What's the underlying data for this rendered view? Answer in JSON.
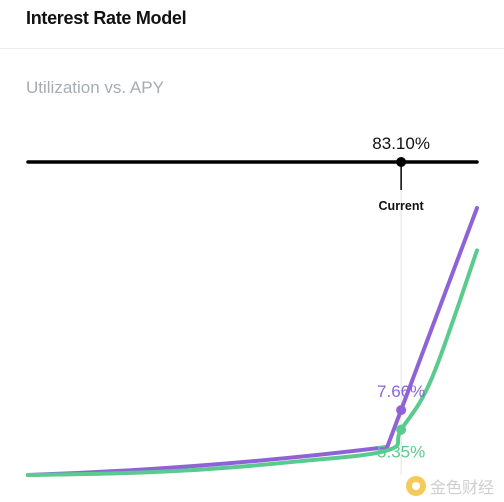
{
  "header": {
    "title": "Interest Rate Model"
  },
  "subtitle": "Utilization vs. APY",
  "watermark": {
    "text": "金色财经"
  },
  "colors": {
    "borrow": "#8f63d6",
    "supply": "#5acb8f",
    "axis": "#000000",
    "guide": "#e2e2e2"
  },
  "chart_data": {
    "type": "line",
    "title": "",
    "xlabel": "",
    "ylabel": "",
    "xlim": [
      0,
      100
    ],
    "current": {
      "utilization": 83.1,
      "utilization_label": "83.10%",
      "marker_label": "Current"
    },
    "series": [
      {
        "key": "borrow",
        "kink": 80,
        "x": [
          0,
          80,
          83.1,
          100
        ],
        "y": [
          0,
          3.3,
          7.66,
          31.5
        ],
        "current_value": 7.66,
        "current_label": "7.66%"
      },
      {
        "key": "supply",
        "x": [
          0,
          20,
          40,
          60,
          80,
          83.1,
          90,
          100
        ],
        "y": [
          0,
          0.2,
          0.7,
          1.6,
          2.9,
          5.35,
          11.5,
          26.5
        ],
        "current_value": 5.35,
        "current_label": "5.35%"
      }
    ]
  }
}
